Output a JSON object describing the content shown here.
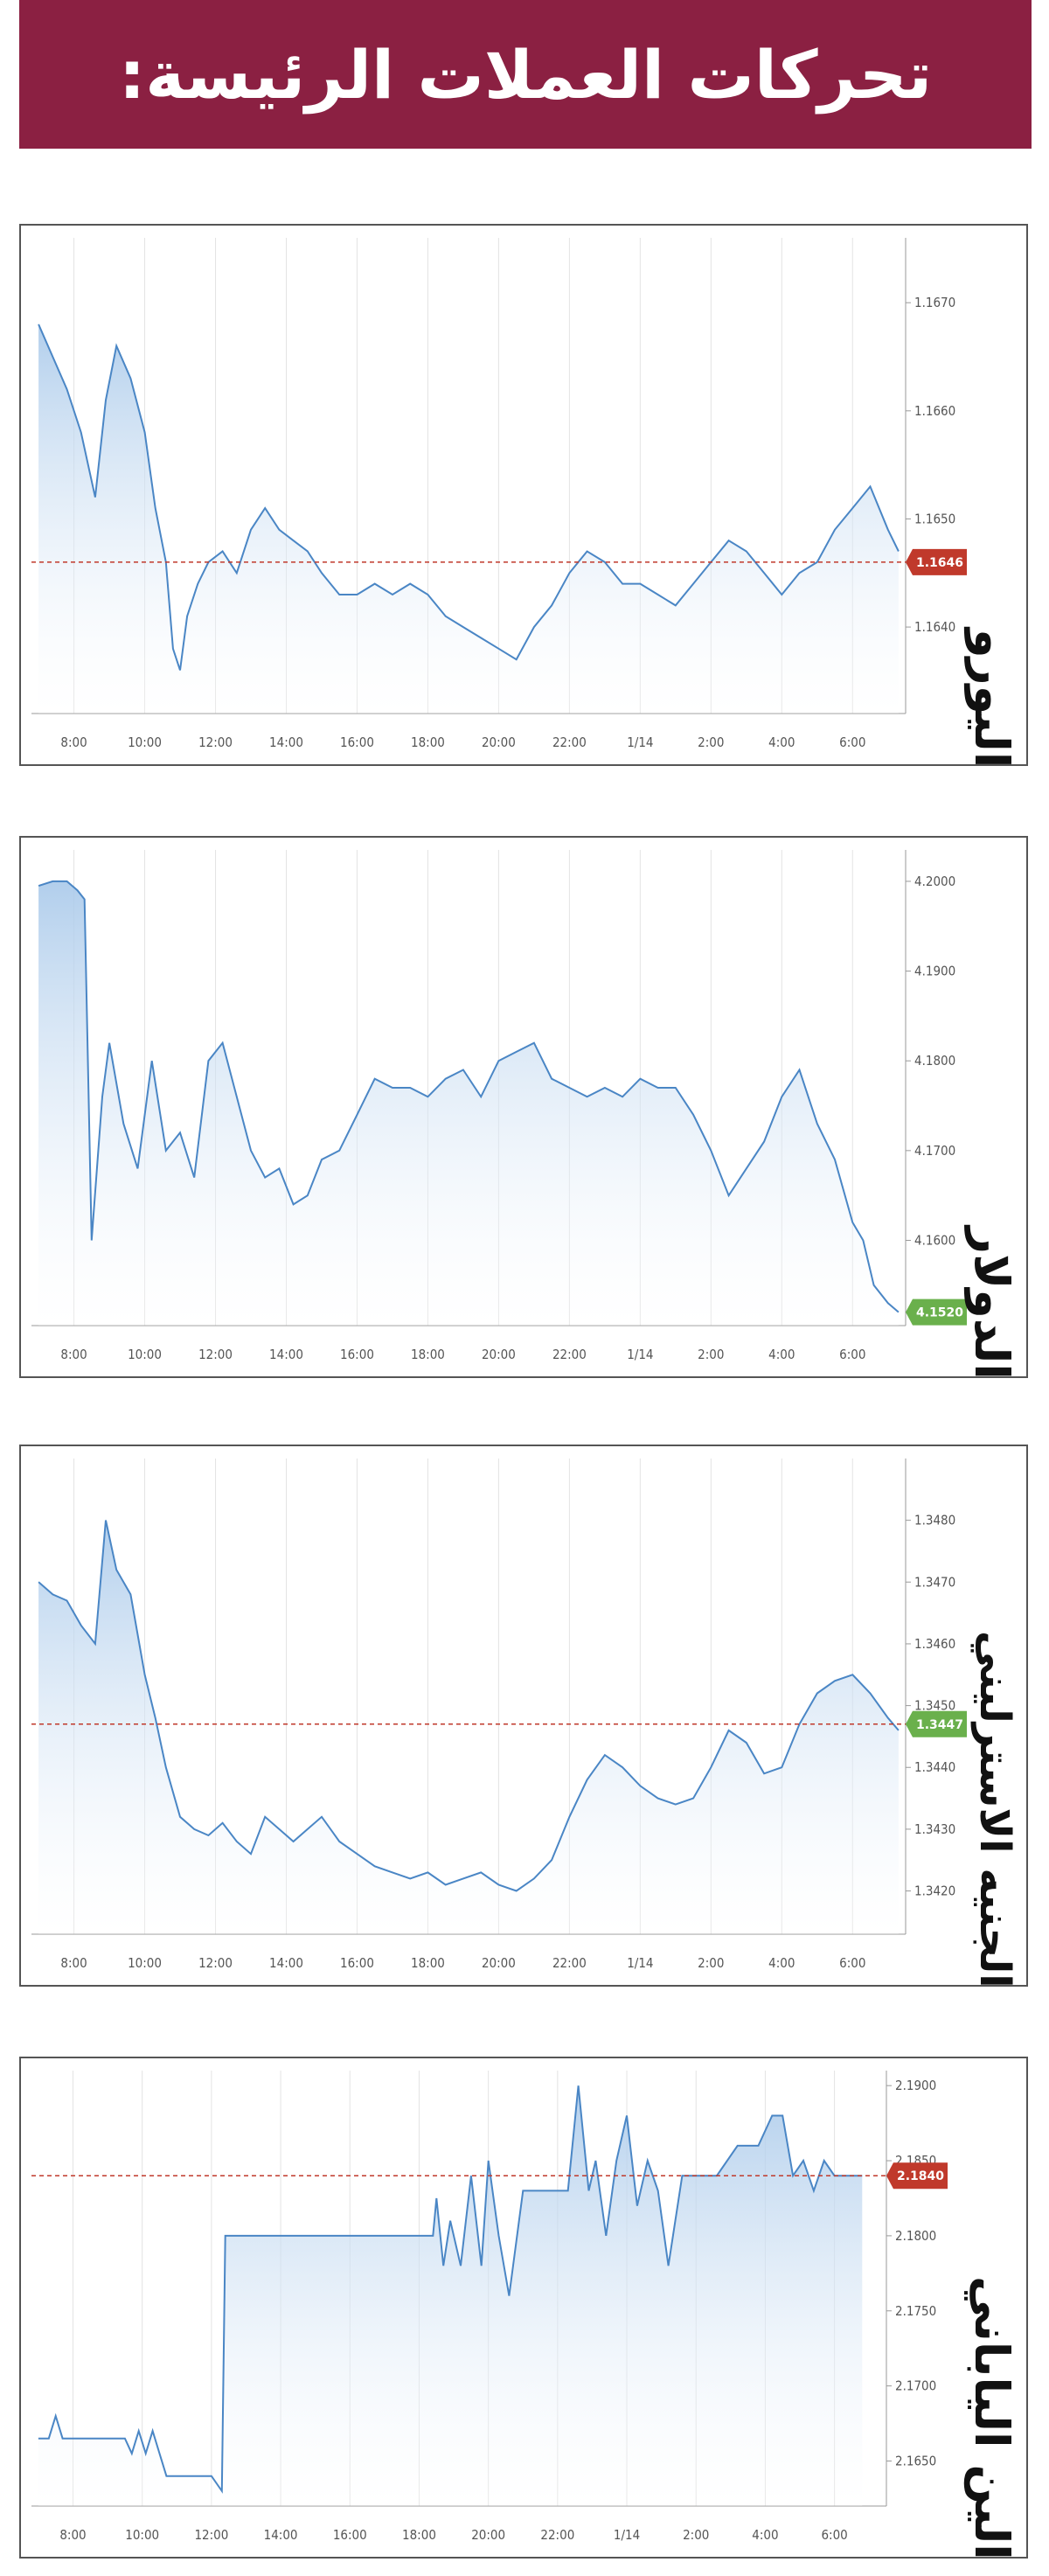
{
  "header": {
    "title": "تحركات العملات الرئيسة:"
  },
  "colors": {
    "banner": "#8b2042",
    "line": "#4a86c5",
    "area_top": "#a9c9ea",
    "ref_line": "#c0392b",
    "badge_red": "#c0392b",
    "badge_green": "#6ab04c"
  },
  "x_ticks": [
    "8:00",
    "10:00",
    "12:00",
    "14:00",
    "16:00",
    "18:00",
    "20:00",
    "22:00",
    "1/14",
    "2:00",
    "4:00",
    "6:00"
  ],
  "chart_data": [
    {
      "type": "line",
      "title": "اليورو",
      "y_ticks": [
        "1.1670",
        "1.1660",
        "1.1650",
        "1.1640"
      ],
      "ylim": [
        1.1632,
        1.1676
      ],
      "current_value": "1.1646",
      "badge_color": "red",
      "reference_line": 1.1646,
      "x": [
        7.0,
        7.4,
        7.8,
        8.2,
        8.6,
        8.9,
        9.2,
        9.6,
        10.0,
        10.3,
        10.6,
        10.8,
        11.0,
        11.2,
        11.5,
        11.8,
        12.2,
        12.6,
        13.0,
        13.4,
        13.8,
        14.2,
        14.6,
        15.0,
        15.5,
        16.0,
        16.5,
        17.0,
        17.5,
        18.0,
        18.5,
        19.0,
        19.5,
        20.0,
        20.5,
        21.0,
        21.5,
        22.0,
        22.5,
        23.0,
        23.5,
        24.0,
        24.5,
        25.0,
        25.5,
        26.0,
        26.5,
        27.0,
        27.5,
        28.0,
        28.5,
        29.0,
        29.5,
        30.0,
        30.5,
        31.0,
        31.3
      ],
      "values": [
        1.1668,
        1.1665,
        1.1662,
        1.1658,
        1.1652,
        1.1661,
        1.1666,
        1.1663,
        1.1658,
        1.1651,
        1.1646,
        1.1638,
        1.1636,
        1.1641,
        1.1644,
        1.1646,
        1.1647,
        1.1645,
        1.1649,
        1.1651,
        1.1649,
        1.1648,
        1.1647,
        1.1645,
        1.1643,
        1.1643,
        1.1644,
        1.1643,
        1.1644,
        1.1643,
        1.1641,
        1.164,
        1.1639,
        1.1638,
        1.1637,
        1.164,
        1.1642,
        1.1645,
        1.1647,
        1.1646,
        1.1644,
        1.1644,
        1.1643,
        1.1642,
        1.1644,
        1.1646,
        1.1648,
        1.1647,
        1.1645,
        1.1643,
        1.1645,
        1.1646,
        1.1649,
        1.1651,
        1.1653,
        1.1649,
        1.1647
      ]
    },
    {
      "type": "line",
      "title": "الدولار",
      "y_ticks": [
        "4.2000",
        "4.1900",
        "4.1800",
        "4.1700",
        "4.1600"
      ],
      "ylim": [
        4.1505,
        4.2035
      ],
      "current_value": "4.1520",
      "badge_color": "green",
      "x": [
        7.0,
        7.4,
        7.8,
        8.1,
        8.3,
        8.5,
        8.8,
        9.0,
        9.4,
        9.8,
        10.2,
        10.6,
        11.0,
        11.4,
        11.8,
        12.2,
        12.6,
        13.0,
        13.4,
        13.8,
        14.2,
        14.6,
        15.0,
        15.5,
        16.0,
        16.5,
        17.0,
        17.5,
        18.0,
        18.5,
        19.0,
        19.5,
        20.0,
        20.5,
        21.0,
        21.5,
        22.0,
        22.5,
        23.0,
        23.5,
        24.0,
        24.5,
        25.0,
        25.5,
        26.0,
        26.5,
        27.0,
        27.5,
        28.0,
        28.5,
        29.0,
        29.5,
        30.0,
        30.3,
        30.6,
        31.0,
        31.3
      ],
      "values": [
        4.1995,
        4.2,
        4.2,
        4.199,
        4.198,
        4.16,
        4.176,
        4.182,
        4.173,
        4.168,
        4.18,
        4.17,
        4.172,
        4.167,
        4.18,
        4.182,
        4.176,
        4.17,
        4.167,
        4.168,
        4.164,
        4.165,
        4.169,
        4.17,
        4.174,
        4.178,
        4.177,
        4.177,
        4.176,
        4.178,
        4.179,
        4.176,
        4.18,
        4.181,
        4.182,
        4.178,
        4.177,
        4.176,
        4.177,
        4.176,
        4.178,
        4.177,
        4.177,
        4.174,
        4.17,
        4.165,
        4.168,
        4.171,
        4.176,
        4.179,
        4.173,
        4.169,
        4.162,
        4.16,
        4.155,
        4.153,
        4.152
      ]
    },
    {
      "type": "line",
      "title": "الجنيه الاسترليني",
      "y_ticks": [
        "1.3480",
        "1.3470",
        "1.3460",
        "1.3450",
        "1.3440",
        "1.3430",
        "1.3420"
      ],
      "ylim": [
        1.3413,
        1.349
      ],
      "current_value": "1.3447",
      "badge_color": "green",
      "reference_line": 1.3447,
      "x": [
        7.0,
        7.4,
        7.8,
        8.2,
        8.6,
        8.9,
        9.2,
        9.6,
        10.0,
        10.3,
        10.6,
        11.0,
        11.4,
        11.8,
        12.2,
        12.6,
        13.0,
        13.4,
        13.8,
        14.2,
        14.6,
        15.0,
        15.5,
        16.0,
        16.5,
        17.0,
        17.5,
        18.0,
        18.5,
        19.0,
        19.5,
        20.0,
        20.5,
        21.0,
        21.5,
        22.0,
        22.5,
        23.0,
        23.5,
        24.0,
        24.5,
        25.0,
        25.5,
        26.0,
        26.5,
        27.0,
        27.5,
        28.0,
        28.5,
        29.0,
        29.5,
        30.0,
        30.5,
        31.0,
        31.3
      ],
      "values": [
        1.347,
        1.3468,
        1.3467,
        1.3463,
        1.346,
        1.348,
        1.3472,
        1.3468,
        1.3455,
        1.3448,
        1.344,
        1.3432,
        1.343,
        1.3429,
        1.3431,
        1.3428,
        1.3426,
        1.3432,
        1.343,
        1.3428,
        1.343,
        1.3432,
        1.3428,
        1.3426,
        1.3424,
        1.3423,
        1.3422,
        1.3423,
        1.3421,
        1.3422,
        1.3423,
        1.3421,
        1.342,
        1.3422,
        1.3425,
        1.3432,
        1.3438,
        1.3442,
        1.344,
        1.3437,
        1.3435,
        1.3434,
        1.3435,
        1.344,
        1.3446,
        1.3444,
        1.3439,
        1.344,
        1.3447,
        1.3452,
        1.3454,
        1.3455,
        1.3452,
        1.3448,
        1.3446
      ]
    },
    {
      "type": "line",
      "title": "الين الياباني",
      "y_ticks": [
        "2.1900",
        "2.1850",
        "2.1800",
        "2.1750",
        "2.1700",
        "2.1650"
      ],
      "ylim": [
        2.162,
        2.191
      ],
      "current_value": "2.1840",
      "badge_color": "red",
      "reference_line": 2.184,
      "x": [
        7.0,
        7.3,
        7.5,
        7.7,
        8.0,
        8.5,
        9.0,
        9.5,
        9.7,
        9.9,
        10.1,
        10.3,
        10.5,
        10.7,
        11.0,
        11.5,
        12.0,
        12.3,
        12.4,
        13.0,
        14.0,
        15.0,
        16.0,
        17.0,
        18.0,
        18.4,
        18.5,
        18.7,
        18.9,
        19.2,
        19.5,
        19.8,
        20.0,
        20.3,
        20.6,
        21.0,
        21.5,
        22.0,
        22.3,
        22.6,
        22.9,
        23.1,
        23.4,
        23.7,
        24.0,
        24.3,
        24.6,
        24.9,
        25.2,
        25.6,
        26.0,
        26.6,
        27.2,
        27.8,
        28.2,
        28.5,
        28.8,
        29.1,
        29.4,
        29.7,
        30.0,
        30.4,
        30.8
      ],
      "values": [
        2.1665,
        2.1665,
        2.168,
        2.1665,
        2.1665,
        2.1665,
        2.1665,
        2.1665,
        2.1655,
        2.167,
        2.1655,
        2.167,
        2.1655,
        2.164,
        2.164,
        2.164,
        2.164,
        2.163,
        2.18,
        2.18,
        2.18,
        2.18,
        2.18,
        2.18,
        2.18,
        2.18,
        2.1825,
        2.178,
        2.181,
        2.178,
        2.184,
        2.178,
        2.185,
        2.18,
        2.176,
        2.183,
        2.183,
        2.183,
        2.183,
        2.19,
        2.183,
        2.185,
        2.18,
        2.185,
        2.188,
        2.182,
        2.185,
        2.183,
        2.178,
        2.184,
        2.184,
        2.184,
        2.186,
        2.186,
        2.188,
        2.188,
        2.184,
        2.185,
        2.183,
        2.185,
        2.184,
        2.184,
        2.184
      ]
    }
  ]
}
